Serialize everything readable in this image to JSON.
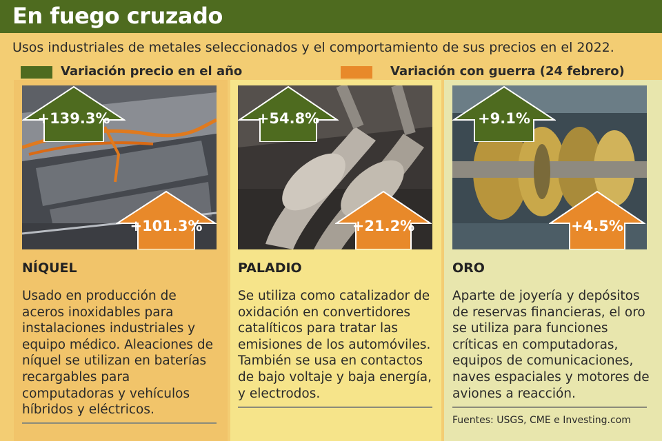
{
  "header": {
    "title": "En fuego cruzado",
    "subtitle": "Usos industriales de metales seleccionados y el comportamiento de sus precios en el 2022."
  },
  "legend": [
    {
      "label": "Variación precio en el año",
      "color": "#4e6b1f"
    },
    {
      "label": "Variación con guerra (24 febrero)",
      "color": "#e8892a"
    }
  ],
  "colors": {
    "green": "#4e6b1f",
    "orange": "#e8892a",
    "title_bar": "#4e6b1f"
  },
  "metals": [
    {
      "name": "NÍQUEL",
      "year_change": "+139.3%",
      "war_change": "+101.3%",
      "description": "Usado en producción de aceros inoxidables para instalaciones industriales y equipo médico. Aleaciones de níquel se utilizan en baterías recargables para computadoras y vehículos híbridos y eléctricos."
    },
    {
      "name": "PALADIO",
      "year_change": "+54.8%",
      "war_change": "+21.2%",
      "description": "Se utiliza como catalizador de oxidación en convertidores catalíticos para tratar las emisiones de los automóviles. También se usa en contactos de bajo voltaje y baja energía, y electrodos."
    },
    {
      "name": "ORO",
      "year_change": "+9.1%",
      "war_change": "+4.5%",
      "description": "Aparte de joyería y depósitos de reservas financieras, el oro se utiliza para funciones críticas en computadoras, equipos de comunicaciones, naves espaciales y motores de aviones a reacción."
    }
  ],
  "footer": {
    "sources": "Fuentes: USGS, CME e Investing.com"
  }
}
